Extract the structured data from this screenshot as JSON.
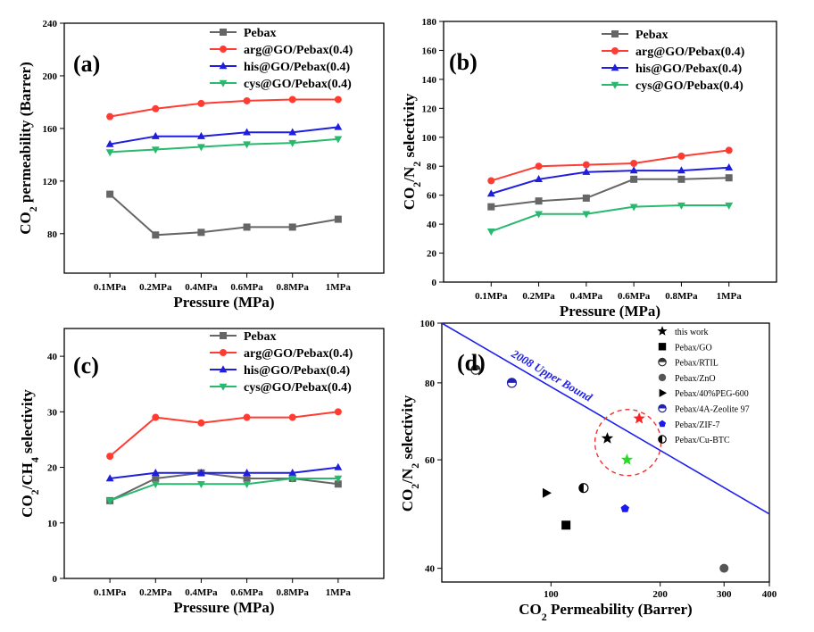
{
  "chart_data": [
    {
      "type": "line",
      "panel_label": "(a)",
      "xlabel": "Pressure (MPa)",
      "ylabel": "CO2 permeability (Barrer)",
      "categories": [
        "0.1MPa",
        "0.2MPa",
        "0.4MPa",
        "0.6MPa",
        "0.8MPa",
        "1MPa"
      ],
      "ylim": [
        50,
        240
      ],
      "yticks": [
        80,
        120,
        160,
        200,
        240
      ],
      "legend_position": "top-right",
      "grid": false,
      "series": [
        {
          "name": "Pebax",
          "color": "#666666",
          "marker": "square",
          "values": [
            110,
            79,
            81,
            85,
            85,
            91
          ]
        },
        {
          "name": "arg@GO/Pebax(0.4)",
          "color": "#ff3c32",
          "marker": "circle",
          "values": [
            169,
            175,
            179,
            181,
            182,
            182
          ]
        },
        {
          "name": "his@GO/Pebax(0.4)",
          "color": "#1e1edc",
          "marker": "triangle-up",
          "values": [
            148,
            154,
            154,
            157,
            157,
            161
          ]
        },
        {
          "name": "cys@GO/Pebax(0.4)",
          "color": "#28b96e",
          "marker": "triangle-down",
          "values": [
            142,
            144,
            146,
            148,
            149,
            152
          ]
        }
      ]
    },
    {
      "type": "line",
      "panel_label": "(b)",
      "xlabel": "Pressure (MPa)",
      "ylabel": "CO2/N2 selectivity",
      "categories": [
        "0.1MPa",
        "0.2MPa",
        "0.4MPa",
        "0.6MPa",
        "0.8MPa",
        "1MPa"
      ],
      "ylim": [
        0,
        180
      ],
      "yticks": [
        0,
        20,
        40,
        60,
        80,
        100,
        120,
        140,
        160,
        180
      ],
      "legend_position": "top-right",
      "grid": false,
      "series": [
        {
          "name": "Pebax",
          "color": "#666666",
          "marker": "square",
          "values": [
            52,
            56,
            58,
            71,
            71,
            72
          ]
        },
        {
          "name": "arg@GO/Pebax(0.4)",
          "color": "#ff3c32",
          "marker": "circle",
          "values": [
            70,
            80,
            81,
            82,
            87,
            91
          ]
        },
        {
          "name": "his@GO/Pebax(0.4)",
          "color": "#1e1edc",
          "marker": "triangle-up",
          "values": [
            61,
            71,
            76,
            77,
            77,
            79
          ]
        },
        {
          "name": "cys@GO/Pebax(0.4)",
          "color": "#28b96e",
          "marker": "triangle-down",
          "values": [
            35,
            47,
            47,
            52,
            53,
            53
          ]
        }
      ]
    },
    {
      "type": "line",
      "panel_label": "(c)",
      "xlabel": "Pressure (MPa)",
      "ylabel": "CO2/CH4 selectivity",
      "categories": [
        "0.1MPa",
        "0.2MPa",
        "0.4MPa",
        "0.6MPa",
        "0.8MPa",
        "1MPa"
      ],
      "ylim": [
        0,
        45
      ],
      "yticks": [
        0,
        10,
        20,
        30,
        40
      ],
      "legend_position": "top-right",
      "grid": false,
      "series": [
        {
          "name": "Pebax",
          "color": "#666666",
          "marker": "square",
          "values": [
            14,
            18,
            19,
            18,
            18,
            17
          ]
        },
        {
          "name": "arg@GO/Pebax(0.4)",
          "color": "#ff3c32",
          "marker": "circle",
          "values": [
            22,
            29,
            28,
            29,
            29,
            30
          ]
        },
        {
          "name": "his@GO/Pebax(0.4)",
          "color": "#1e1edc",
          "marker": "triangle-up",
          "values": [
            18,
            19,
            19,
            19,
            19,
            20
          ]
        },
        {
          "name": "cys@GO/Pebax(0.4)",
          "color": "#28b96e",
          "marker": "triangle-down",
          "values": [
            14,
            17,
            17,
            17,
            18,
            18
          ]
        }
      ]
    },
    {
      "type": "scatter",
      "panel_label": "(d)",
      "xlabel": "CO2 Permeability (Barrer)",
      "ylabel": "CO2/N2 selectivity",
      "xscale": "log",
      "yscale": "log",
      "xlim": [
        50,
        400
      ],
      "ylim": [
        38,
        100
      ],
      "xticks": [
        100,
        200,
        300,
        400
      ],
      "yticks": [
        40,
        60,
        80,
        100
      ],
      "upper_bound": {
        "label": "2008 Upper Bound",
        "color": "#2020ee",
        "points": [
          [
            50,
            100
          ],
          [
            400,
            49
          ]
        ]
      },
      "highlight_circle": {
        "center": [
          163,
          64
        ],
        "color": "#ee3333"
      },
      "legend_position": "top-right",
      "legend": [
        {
          "name": "this work",
          "marker": "star"
        },
        {
          "name": "Pebax/GO",
          "marker": "square"
        },
        {
          "name": "Pebax/RTIL",
          "marker": "half-circle"
        },
        {
          "name": "Pebax/ZnO",
          "marker": "circle"
        },
        {
          "name": "Pebax/40%PEG-600",
          "marker": "triangle-right"
        },
        {
          "name": "Pebax/4A-Zeolite 97",
          "marker": "half-circle-blue"
        },
        {
          "name": "Pebax/ZIF-7",
          "marker": "pentagon"
        },
        {
          "name": "Pebax/Cu-BTC",
          "marker": "half-circle-vertical"
        }
      ],
      "points": [
        {
          "group": "this work",
          "x": 143,
          "y": 65,
          "color": "#000000",
          "marker": "star"
        },
        {
          "group": "this work",
          "x": 175,
          "y": 70,
          "color": "#ff2020",
          "marker": "star"
        },
        {
          "group": "this work",
          "x": 162,
          "y": 60,
          "color": "#22dd22",
          "marker": "star"
        },
        {
          "group": "Pebax/GO",
          "x": 110,
          "y": 47,
          "color": "#000000",
          "marker": "square"
        },
        {
          "group": "Pebax/RTIL",
          "x": 62,
          "y": 84,
          "color": "#333333",
          "marker": "half-circle"
        },
        {
          "group": "Pebax/ZnO",
          "x": 300,
          "y": 40,
          "color": "#555555",
          "marker": "circle"
        },
        {
          "group": "Pebax/40%PEG-600",
          "x": 97,
          "y": 53,
          "color": "#000000",
          "marker": "triangle-right"
        },
        {
          "group": "Pebax/4A-Zeolite 97",
          "x": 78,
          "y": 80,
          "color": "#2222aa",
          "marker": "half-circle-blue"
        },
        {
          "group": "Pebax/ZIF-7",
          "x": 160,
          "y": 50,
          "color": "#1a1aee",
          "marker": "pentagon"
        },
        {
          "group": "Pebax/Cu-BTC",
          "x": 123,
          "y": 54,
          "color": "#000000",
          "marker": "half-circle-vertical"
        }
      ]
    }
  ]
}
